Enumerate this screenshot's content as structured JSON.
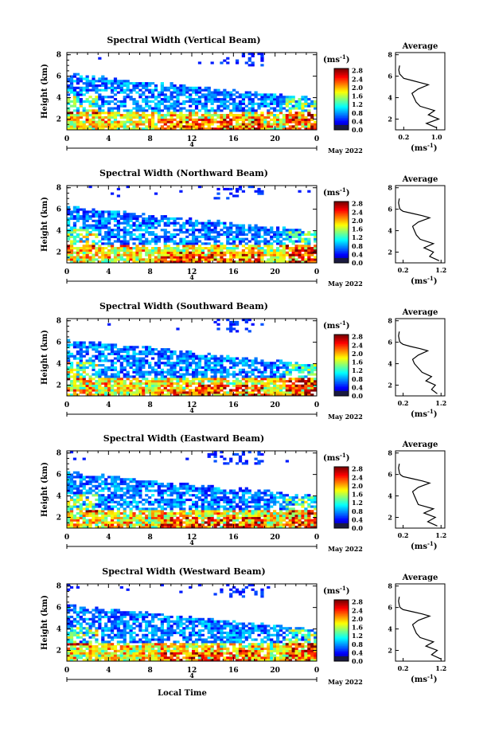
{
  "figure": {
    "month_label": "May 2022",
    "xlabel": "Local Time",
    "date_marker": "4",
    "colorbar_unit": "(ms",
    "colorbar_unit_exp": "-1",
    "avg_title": "Average",
    "avg_xunit": "(ms",
    "avg_xunit_exp": "-1"
  },
  "chart_data": [
    {
      "type": "heatmap",
      "title": "Spectral Width (Vertical Beam)",
      "ylabel": "Height (km)",
      "xlabel": "",
      "xticks": [
        "0",
        "4",
        "8",
        "12",
        "16",
        "20",
        "0"
      ],
      "yticks": [
        "2",
        "4",
        "6",
        "8"
      ],
      "ylim": [
        1,
        8.2
      ],
      "xlim": [
        0,
        24
      ],
      "colorbar_ticks": [
        "0.0",
        "0.4",
        "0.8",
        "1.2",
        "1.6",
        "2.0",
        "2.4",
        "2.8"
      ],
      "colorbar_range": [
        0,
        2.9
      ],
      "average_profile": {
        "xticks": [
          "0.2",
          "1.0"
        ],
        "xlim": [
          0,
          1.2
        ],
        "yticks": [
          "2",
          "4",
          "6",
          "8"
        ],
        "height": [
          1.2,
          1.6,
          2.0,
          2.4,
          2.8,
          3.2,
          3.6,
          4.0,
          4.4,
          4.8,
          5.2,
          5.4,
          5.6,
          5.8,
          6.0,
          6.2,
          6.6,
          7.0
        ],
        "width": [
          1.0,
          0.75,
          1.05,
          0.8,
          0.95,
          0.6,
          0.5,
          0.45,
          0.4,
          0.55,
          0.8,
          0.6,
          0.4,
          0.2,
          0.15,
          0.1,
          0.08,
          0.1
        ]
      }
    },
    {
      "type": "heatmap",
      "title": "Spectral Width (Northward Beam)",
      "ylabel": "Height (km)",
      "xlabel": "",
      "xticks": [
        "0",
        "4",
        "8",
        "12",
        "16",
        "20",
        "0"
      ],
      "yticks": [
        "2",
        "4",
        "6",
        "8"
      ],
      "ylim": [
        1,
        8.2
      ],
      "xlim": [
        0,
        24
      ],
      "colorbar_ticks": [
        "0.0",
        "0.4",
        "0.8",
        "1.2",
        "1.6",
        "2.0",
        "2.4",
        "2.8"
      ],
      "colorbar_range": [
        0,
        2.9
      ],
      "average_profile": {
        "xticks": [
          "0.2",
          "1.2"
        ],
        "xlim": [
          0,
          1.3
        ],
        "yticks": [
          "2",
          "4",
          "6",
          "8"
        ],
        "height": [
          1.2,
          1.6,
          2.0,
          2.4,
          2.8,
          3.2,
          3.6,
          4.0,
          4.4,
          4.8,
          5.2,
          5.4,
          5.6,
          5.8,
          6.0,
          6.2,
          6.6,
          7.0
        ],
        "width": [
          1.15,
          0.9,
          1.0,
          0.75,
          1.0,
          0.65,
          0.55,
          0.5,
          0.45,
          0.6,
          0.9,
          0.7,
          0.45,
          0.2,
          0.12,
          0.1,
          0.08,
          0.1
        ]
      }
    },
    {
      "type": "heatmap",
      "title": "Spectral Width (Southward Beam)",
      "ylabel": "Height (km)",
      "xlabel": "",
      "xticks": [
        "0",
        "4",
        "8",
        "12",
        "16",
        "20",
        "0"
      ],
      "yticks": [
        "2",
        "4",
        "6",
        "8"
      ],
      "ylim": [
        1,
        8.2
      ],
      "xlim": [
        0,
        24
      ],
      "colorbar_ticks": [
        "0.0",
        "0.4",
        "0.8",
        "1.2",
        "1.6",
        "2.0",
        "2.4",
        "2.8"
      ],
      "colorbar_range": [
        0,
        2.9
      ],
      "average_profile": {
        "xticks": [
          "0.2",
          "1.2"
        ],
        "xlim": [
          0,
          1.3
        ],
        "yticks": [
          "2",
          "4",
          "6",
          "8"
        ],
        "height": [
          1.2,
          1.6,
          2.0,
          2.4,
          2.8,
          3.2,
          3.6,
          4.0,
          4.4,
          4.8,
          5.2,
          5.4,
          5.6,
          5.8,
          6.0,
          6.2,
          6.6,
          7.0
        ],
        "width": [
          1.1,
          0.95,
          1.05,
          0.8,
          0.95,
          0.7,
          0.6,
          0.5,
          0.45,
          0.6,
          0.85,
          0.65,
          0.4,
          0.2,
          0.12,
          0.1,
          0.08,
          0.1
        ]
      }
    },
    {
      "type": "heatmap",
      "title": "Spectral Width (Eastward Beam)",
      "ylabel": "Height (km)",
      "xlabel": "",
      "xticks": [
        "0",
        "4",
        "8",
        "12",
        "16",
        "20",
        "0"
      ],
      "yticks": [
        "2",
        "4",
        "6",
        "8"
      ],
      "ylim": [
        1,
        8.2
      ],
      "xlim": [
        0,
        24
      ],
      "colorbar_ticks": [
        "0.0",
        "0.4",
        "0.8",
        "1.2",
        "1.6",
        "2.0",
        "2.4",
        "2.8"
      ],
      "colorbar_range": [
        0,
        2.9
      ],
      "average_profile": {
        "xticks": [
          "0.2",
          "1.2"
        ],
        "xlim": [
          0,
          1.3
        ],
        "yticks": [
          "2",
          "4",
          "6",
          "8"
        ],
        "height": [
          1.2,
          1.6,
          2.0,
          2.4,
          2.8,
          3.2,
          3.6,
          4.0,
          4.4,
          4.8,
          5.2,
          5.4,
          5.6,
          5.8,
          6.0,
          6.2,
          6.6,
          7.0
        ],
        "width": [
          1.1,
          0.85,
          1.05,
          0.75,
          1.0,
          0.6,
          0.55,
          0.5,
          0.45,
          0.6,
          0.9,
          0.7,
          0.45,
          0.2,
          0.12,
          0.1,
          0.08,
          0.1
        ]
      }
    },
    {
      "type": "heatmap",
      "title": "Spectral Width (Westward Beam)",
      "ylabel": "Height (km)",
      "xlabel": "Local Time",
      "xticks": [
        "0",
        "4",
        "8",
        "12",
        "16",
        "20",
        "0"
      ],
      "yticks": [
        "2",
        "4",
        "6",
        "8"
      ],
      "ylim": [
        1,
        8.2
      ],
      "xlim": [
        0,
        24
      ],
      "colorbar_ticks": [
        "0.0",
        "0.4",
        "0.8",
        "1.2",
        "1.6",
        "2.0",
        "2.4",
        "2.8"
      ],
      "colorbar_range": [
        0,
        2.9
      ],
      "average_profile": {
        "xticks": [
          "0.2",
          "1.2"
        ],
        "xlim": [
          0,
          1.3
        ],
        "yticks": [
          "2",
          "4",
          "6",
          "8"
        ],
        "height": [
          1.2,
          1.6,
          2.0,
          2.4,
          2.8,
          3.2,
          3.6,
          4.0,
          4.4,
          4.8,
          5.2,
          5.4,
          5.6,
          5.8,
          6.0,
          6.2,
          6.6,
          7.0
        ],
        "width": [
          1.2,
          0.95,
          1.1,
          0.8,
          1.0,
          0.65,
          0.55,
          0.5,
          0.45,
          0.6,
          0.9,
          0.7,
          0.45,
          0.2,
          0.12,
          0.1,
          0.08,
          0.1
        ]
      }
    }
  ]
}
